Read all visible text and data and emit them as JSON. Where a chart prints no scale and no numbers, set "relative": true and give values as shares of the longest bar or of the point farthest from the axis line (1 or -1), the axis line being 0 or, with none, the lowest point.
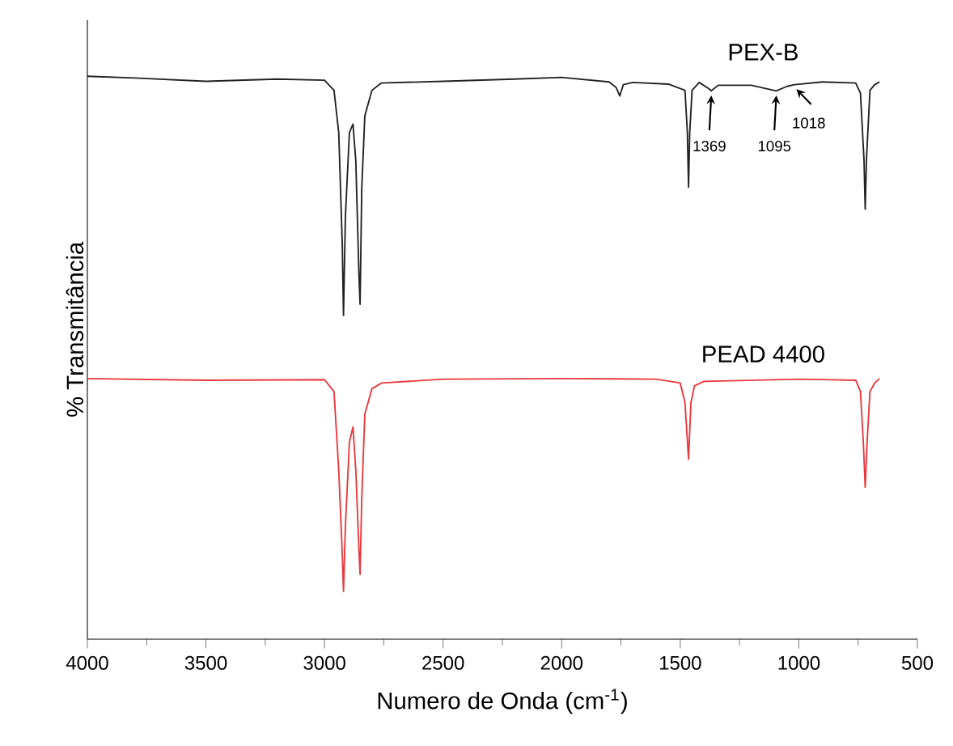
{
  "chart_data": {
    "type": "line",
    "relative": true,
    "xlabel": "Numero de Onda (cm$^{-1}$)",
    "ylabel": "% Transmitância",
    "xlim": [
      4000,
      500
    ],
    "xticks": [
      4000,
      3500,
      3000,
      2500,
      2000,
      1500,
      1000,
      500
    ],
    "legend": false,
    "grid": false,
    "marker": "none",
    "line_style": "solid",
    "series": [
      {
        "name": "PEX-B",
        "color": "#222222",
        "x": [
          4000,
          3800,
          3500,
          3200,
          3000,
          2960,
          2940,
          2925,
          2920,
          2912,
          2895,
          2880,
          2868,
          2855,
          2850,
          2843,
          2830,
          2800,
          2760,
          2500,
          2200,
          2000,
          1800,
          1770,
          1755,
          1740,
          1700,
          1550,
          1480,
          1470,
          1465,
          1460,
          1450,
          1420,
          1380,
          1369,
          1340,
          1200,
          1095,
          1050,
          1018,
          900,
          760,
          740,
          725,
          720,
          715,
          700,
          680,
          660
        ],
        "values": [
          1.0,
          0.997,
          0.991,
          0.995,
          0.993,
          0.975,
          0.9,
          0.7,
          0.575,
          0.75,
          0.9,
          0.915,
          0.85,
          0.65,
          0.595,
          0.8,
          0.93,
          0.975,
          0.988,
          0.991,
          0.995,
          0.998,
          0.99,
          0.98,
          0.965,
          0.985,
          0.989,
          0.986,
          0.975,
          0.9,
          0.803,
          0.9,
          0.975,
          0.989,
          0.978,
          0.974,
          0.984,
          0.984,
          0.974,
          0.982,
          0.985,
          0.99,
          0.988,
          0.97,
          0.85,
          0.764,
          0.85,
          0.975,
          0.985,
          0.99
        ]
      },
      {
        "name": "PEAD 4400",
        "color": "#e8383d",
        "x": [
          4000,
          3500,
          3000,
          2960,
          2940,
          2925,
          2920,
          2912,
          2895,
          2880,
          2868,
          2855,
          2850,
          2843,
          2830,
          2800,
          2760,
          2500,
          2000,
          1600,
          1500,
          1480,
          1465,
          1455,
          1440,
          1400,
          1000,
          760,
          740,
          728,
          720,
          712,
          700,
          680,
          660
        ],
        "values": [
          0.463,
          0.46,
          0.461,
          0.44,
          0.3,
          0.15,
          0.085,
          0.2,
          0.35,
          0.377,
          0.3,
          0.16,
          0.115,
          0.25,
          0.4,
          0.445,
          0.455,
          0.462,
          0.463,
          0.462,
          0.455,
          0.42,
          0.32,
          0.42,
          0.45,
          0.458,
          0.462,
          0.46,
          0.44,
          0.35,
          0.27,
          0.35,
          0.44,
          0.455,
          0.463
        ]
      }
    ],
    "annotations": [
      {
        "text": "1369",
        "x": 1369,
        "y": 0.974
      },
      {
        "text": "1095",
        "x": 1095,
        "y": 0.974
      },
      {
        "text": "1018",
        "x": 1018,
        "y": 0.985
      }
    ]
  }
}
